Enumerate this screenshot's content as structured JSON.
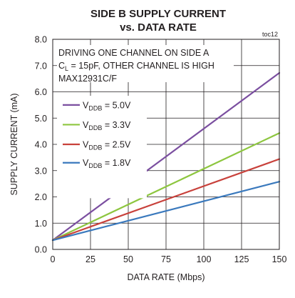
{
  "chart_data": {
    "type": "line",
    "title": "SIDE B SUPPLY CURRENT",
    "subtitle": "vs. DATA RATE",
    "tag": "toc12",
    "xlabel": "DATA RATE (Mbps)",
    "ylabel": "SUPPLY CURRENT (mA)",
    "xlim": [
      0,
      150
    ],
    "ylim": [
      0,
      8
    ],
    "x_ticks": [
      0,
      25,
      50,
      75,
      100,
      125,
      150
    ],
    "x_tick_labels": [
      "0",
      "25",
      "50",
      "75",
      "100",
      "125",
      "150"
    ],
    "y_ticks": [
      0,
      1,
      2,
      3,
      4,
      5,
      6,
      7,
      8
    ],
    "y_tick_labels": [
      "0.0",
      "1.0",
      "2.0",
      "3.0",
      "4.0",
      "5.0",
      "6.0",
      "7.0",
      "8.0"
    ],
    "grid": true,
    "annotations": [
      "DRIVING ONE CHANNEL ON SIDE A",
      "C",
      "L",
      " = 15pF, OTHER CHANNEL IS HIGH",
      "MAX12931C/F"
    ],
    "legend_placement": "left",
    "series": [
      {
        "name_main": "V",
        "name_sub": "DDB",
        "name_value": " = 5.0V",
        "color": "#7b4fa0",
        "x": [
          0,
          150
        ],
        "y": [
          0.35,
          6.72
        ]
      },
      {
        "name_main": "V",
        "name_sub": "DDB",
        "name_value": " = 3.3V",
        "color": "#8dc63f",
        "x": [
          0,
          150
        ],
        "y": [
          0.35,
          4.43
        ]
      },
      {
        "name_main": "V",
        "name_sub": "DDB",
        "name_value": " = 2.5V",
        "color": "#c8413b",
        "x": [
          0,
          150
        ],
        "y": [
          0.35,
          3.44
        ]
      },
      {
        "name_main": "V",
        "name_sub": "DDB",
        "name_value": " = 1.8V",
        "color": "#3a79bd",
        "x": [
          0,
          150
        ],
        "y": [
          0.35,
          2.58
        ]
      }
    ]
  }
}
